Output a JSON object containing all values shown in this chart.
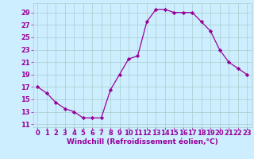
{
  "x": [
    0,
    1,
    2,
    3,
    4,
    5,
    6,
    7,
    8,
    9,
    10,
    11,
    12,
    13,
    14,
    15,
    16,
    17,
    18,
    19,
    20,
    21,
    22,
    23
  ],
  "y": [
    17,
    16,
    14.5,
    13.5,
    13,
    12,
    12,
    12,
    16.5,
    19,
    21.5,
    22,
    27.5,
    29.5,
    29.5,
    29,
    29,
    29,
    27.5,
    26,
    23,
    21,
    20,
    19
  ],
  "line_color": "#990099",
  "marker": "D",
  "marker_size": 2.2,
  "bg_color": "#cceeff",
  "grid_color": "#aacccc",
  "xlabel": "Windchill (Refroidissement éolien,°C)",
  "xlim": [
    -0.5,
    23.5
  ],
  "ylim": [
    10.5,
    30.5
  ],
  "yticks": [
    11,
    13,
    15,
    17,
    19,
    21,
    23,
    25,
    27,
    29
  ],
  "xticks": [
    0,
    1,
    2,
    3,
    4,
    5,
    6,
    7,
    8,
    9,
    10,
    11,
    12,
    13,
    14,
    15,
    16,
    17,
    18,
    19,
    20,
    21,
    22,
    23
  ],
  "tick_color": "#990099",
  "label_color": "#990099",
  "font_size": 6.0,
  "xlabel_fontsize": 6.5,
  "linewidth": 0.9
}
